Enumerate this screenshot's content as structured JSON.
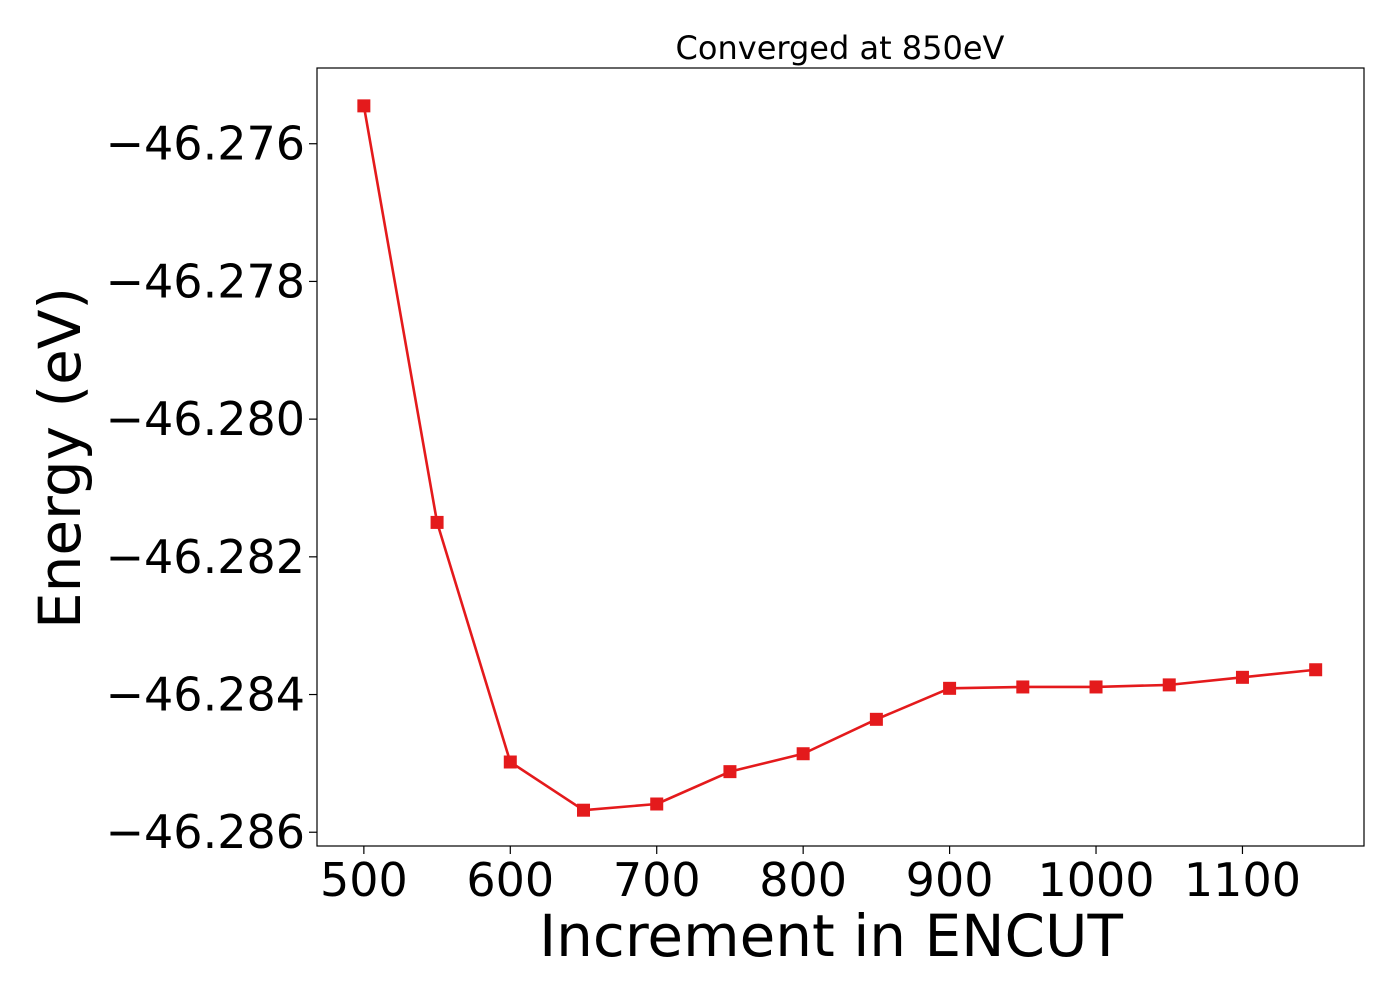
{
  "chart_data": {
    "type": "line",
    "title": "Converged at 850eV",
    "xlabel": "Increment in ENCUT",
    "ylabel": "Energy (eV)",
    "x": [
      500,
      550,
      600,
      650,
      700,
      750,
      800,
      850,
      900,
      950,
      1000,
      1050,
      1100,
      1150
    ],
    "series": [
      {
        "values": [
          -46.27545,
          -46.2815,
          -46.28498,
          -46.28568,
          -46.28559,
          -46.28512,
          -46.28486,
          -46.28436,
          -46.28391,
          -46.28389,
          -46.28389,
          -46.28386,
          -46.28375,
          -46.28364
        ],
        "color": "#e41a1c",
        "marker": "square"
      }
    ],
    "xticks": [
      500,
      600,
      700,
      800,
      900,
      1000,
      1100
    ],
    "xtick_labels": [
      "500",
      "600",
      "700",
      "800",
      "900",
      "1000",
      "1100"
    ],
    "yticks": [
      -46.276,
      -46.278,
      -46.28,
      -46.282,
      -46.284,
      -46.286
    ],
    "ytick_labels": [
      "−46.276",
      "−46.278",
      "−46.280",
      "−46.282",
      "−46.284",
      "−46.286"
    ],
    "xlim": [
      468,
      1183
    ],
    "ylim": [
      -46.2862,
      -46.2749
    ],
    "grid": false,
    "legend": "none"
  }
}
